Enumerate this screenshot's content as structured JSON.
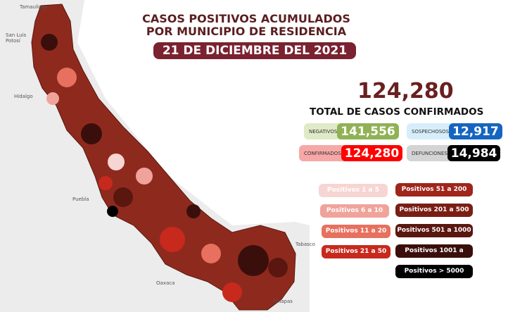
{
  "title_line1": "CASOS POSITIVOS ACUMULADOS",
  "title_line2": "POR MUNICIPIO DE RESIDENCIA",
  "date": "21 DE DICIEMBRE DEL 2021",
  "total": "124,280",
  "total_label": "TOTAL DE CASOS CONFIRMADOS",
  "stats": {
    "negativos": {
      "label": "NEGATIVOS",
      "value": "141,556",
      "color": "#8fb255"
    },
    "sospechosos": {
      "label": "SOSPECHOSOS",
      "value": "12,917",
      "color": "#1565c0"
    },
    "confirmados": {
      "label": "CONFIRMADOS",
      "value": "124,280",
      "color": "#ff0000"
    },
    "defunciones": {
      "label": "DEFUNCIONES",
      "value": "14,984",
      "color": "#000000"
    }
  },
  "states": [
    "Tamaulipas",
    "San Luis Potosí",
    "Hidalgo",
    "Puebla",
    "Oaxaca",
    "Tabasco",
    "Chiapas"
  ],
  "legend": [
    {
      "label": "Positivos 1 a 5",
      "color": "#f7d5d2"
    },
    {
      "label": "Positivos 6 a 10",
      "color": "#f0a39b"
    },
    {
      "label": "Positivos 11 a 20",
      "color": "#e8705f"
    },
    {
      "label": "Positivos 21 a 50",
      "color": "#c8291d"
    },
    {
      "label": "Positivos 51 a 200",
      "color": "#a0251b"
    },
    {
      "label": "Positivos 201 a 500",
      "color": "#7a1e14"
    },
    {
      "label": "Positivos 501 a 1000",
      "color": "#5a1710"
    },
    {
      "label": "Positivos 1001 a 5000",
      "color": "#3a0f0b"
    },
    {
      "label": "Positivos > 5000",
      "color": "#000000"
    }
  ]
}
